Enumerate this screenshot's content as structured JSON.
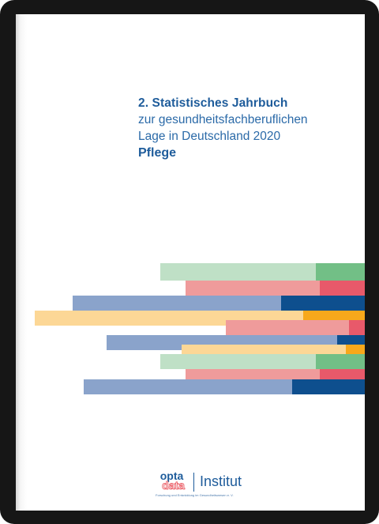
{
  "cover": {
    "title_line1": "2. Statistisches Jahrbuch",
    "title_line2": "zur gesundheitsfachberuflichen",
    "title_line3": "Lage in Deutschland 2020",
    "title_line4": "Pflege"
  },
  "logo": {
    "word1": "opta",
    "word2": "data",
    "name": "Institut",
    "tagline": "Forschung und Entwicklung im Gesundheitswesen e. V."
  },
  "colors": {
    "title_blue": "#1e5c9b",
    "green_light": "#bfe0c6",
    "green_dark": "#72bf86",
    "pink_light": "#ef9b9b",
    "pink_dark": "#e8596a",
    "blue_light": "#8aa3cb",
    "blue_dark": "#0e4f8e",
    "yellow_light": "#fcd796",
    "yellow_dark": "#f7a81b"
  }
}
